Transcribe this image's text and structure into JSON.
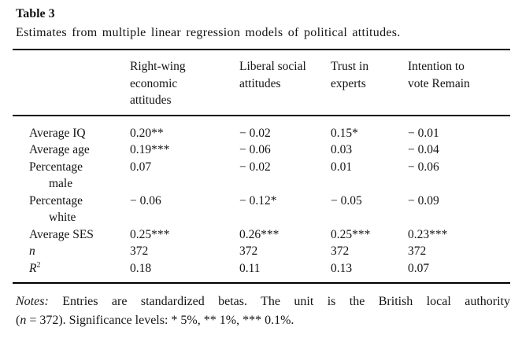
{
  "table": {
    "number_label": "Table 3",
    "caption": "Estimates from multiple linear regression models of political attitudes.",
    "columns": [
      {
        "lines": [
          "Right-wing",
          "economic",
          "attitudes"
        ]
      },
      {
        "lines": [
          "Liberal social",
          "attitudes"
        ]
      },
      {
        "lines": [
          "Trust in",
          "experts"
        ]
      },
      {
        "lines": [
          "Intention to",
          "vote Remain"
        ]
      }
    ],
    "rows": [
      {
        "label": "Average IQ",
        "values": [
          "0.20**",
          "− 0.02",
          "0.15*",
          "− 0.01"
        ]
      },
      {
        "label": "Average age",
        "values": [
          "0.19***",
          "− 0.06",
          "0.03",
          "− 0.04"
        ]
      },
      {
        "label": "Percentage",
        "label_line2": "male",
        "values": [
          "0.07",
          "− 0.02",
          "0.01",
          "− 0.06"
        ]
      },
      {
        "label": "Percentage",
        "label_line2": "white",
        "values": [
          "− 0.06",
          "− 0.12*",
          "− 0.05",
          "− 0.09"
        ]
      },
      {
        "label": "Average SES",
        "values": [
          "0.25***",
          "0.26***",
          "0.25***",
          "0.23***"
        ]
      },
      {
        "label": "n",
        "label_italic": true,
        "values": [
          "372",
          "372",
          "372",
          "372"
        ]
      },
      {
        "label": "R",
        "label_sup": "2",
        "label_italic": true,
        "values": [
          "0.18",
          "0.11",
          "0.13",
          "0.07"
        ]
      }
    ],
    "notes": {
      "line1_parts": [
        {
          "text": "Notes:",
          "italic": true
        },
        {
          "text": " Entries are standardized betas. The unit is the British local authority",
          "italic": false
        }
      ],
      "line2_parts": [
        {
          "text": "(",
          "italic": false
        },
        {
          "text": "n",
          "italic": true
        },
        {
          "text": " = 372). Significance levels: * 5%, ** 1%, *** 0.1%.",
          "italic": false
        }
      ]
    }
  },
  "colors": {
    "background": "#ffffff",
    "text": "#141414",
    "rule": "#000000"
  }
}
